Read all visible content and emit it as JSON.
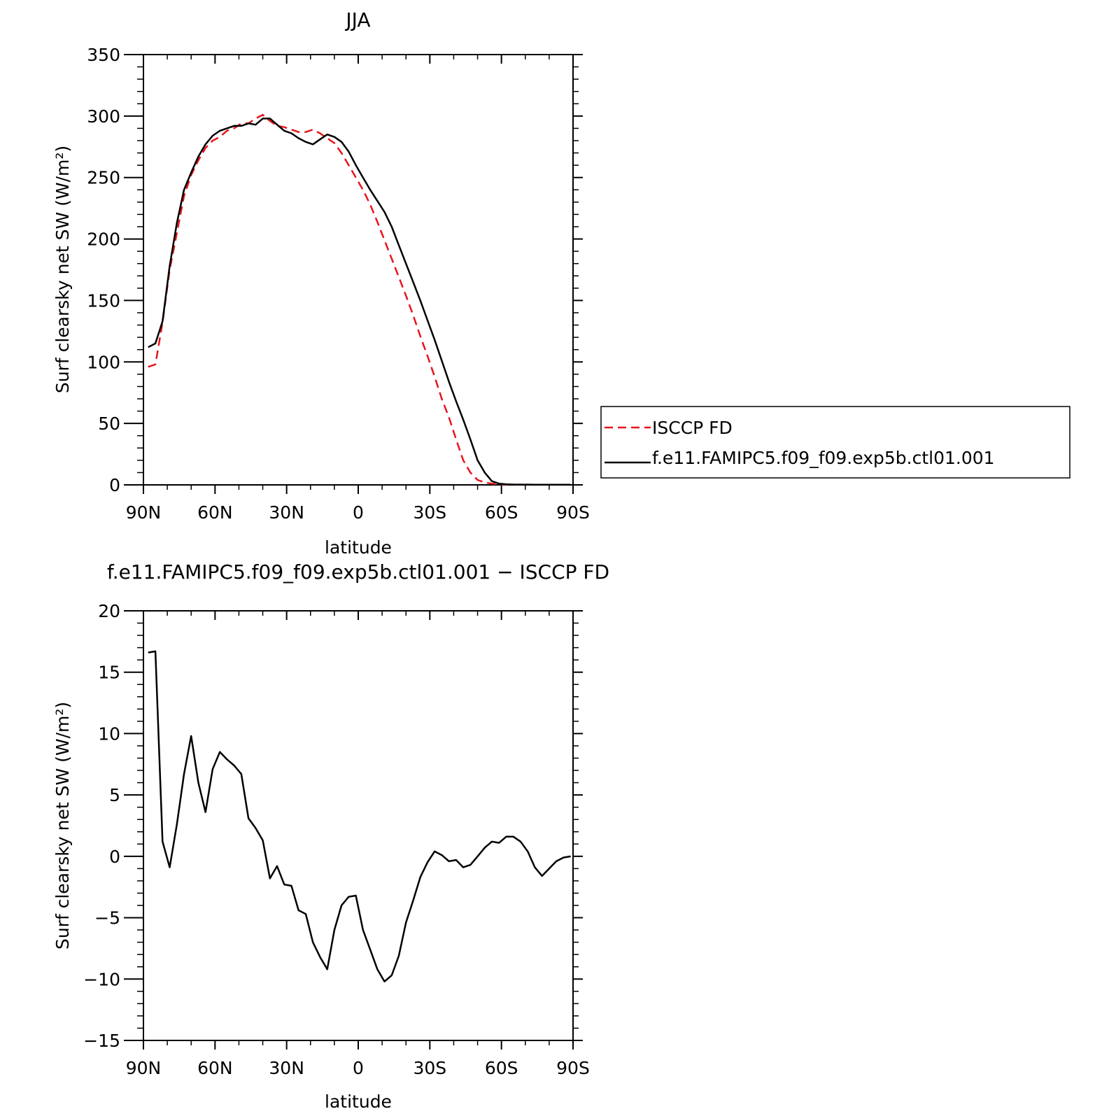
{
  "chart_data": [
    {
      "type": "line",
      "title": "JJA",
      "xlabel": "latitude",
      "ylabel": "Surf clearsky net SW (W/m²)",
      "xlim": [
        90,
        -90
      ],
      "ylim": [
        0,
        350
      ],
      "x_ticks": [
        90,
        60,
        30,
        0,
        -30,
        -60,
        -90
      ],
      "x_tick_labels": [
        "90N",
        "60N",
        "30N",
        "0",
        "30S",
        "60S",
        "90S"
      ],
      "y_ticks": [
        0,
        50,
        100,
        150,
        200,
        250,
        300,
        350
      ],
      "y_tick_labels": [
        "0",
        "50",
        "100",
        "150",
        "200",
        "250",
        "300",
        "350"
      ],
      "legend_position": "right",
      "series": [
        {
          "name": "ISCCP FD",
          "color": "#e8141c",
          "dash": "dashed",
          "x": [
            88,
            85,
            82,
            79,
            76,
            73,
            70,
            67,
            64,
            61,
            58,
            55,
            52,
            49,
            46,
            43,
            40,
            37,
            34,
            31,
            28,
            25,
            22,
            19,
            16,
            13,
            10,
            7,
            4,
            1,
            -2,
            -5,
            -8,
            -11,
            -14,
            -17,
            -20,
            -23,
            -26,
            -29,
            -32,
            -35,
            -38,
            -41,
            -44,
            -47,
            -50,
            -53,
            -56,
            -59,
            -62,
            -65,
            -68,
            -71,
            -74,
            -77,
            -80,
            -83,
            -86,
            -89
          ],
          "values": [
            96,
            98,
            132,
            175,
            205,
            235,
            252,
            264,
            274,
            280,
            283,
            288,
            290,
            294,
            294,
            298,
            301,
            296,
            292,
            291,
            289,
            287,
            287,
            289,
            286,
            282,
            278,
            270,
            260,
            250,
            240,
            228,
            214,
            199,
            184,
            169,
            154,
            138,
            121,
            105,
            88,
            70,
            55,
            37,
            20,
            10,
            4,
            2,
            1,
            0.5,
            0.3,
            0.2,
            0.2,
            0.2,
            0.1,
            0.1,
            0.1,
            0.1,
            0.1,
            0.1
          ]
        },
        {
          "name": "f.e11.FAMIPC5.f09_f09.exp5b.ctl01.001",
          "color": "#000000",
          "dash": "solid",
          "x": [
            88,
            85,
            82,
            79,
            76,
            73,
            70,
            67,
            64,
            61,
            58,
            55,
            52,
            49,
            46,
            43,
            40,
            37,
            34,
            31,
            28,
            25,
            22,
            19,
            16,
            13,
            10,
            7,
            4,
            1,
            -2,
            -5,
            -8,
            -11,
            -14,
            -17,
            -20,
            -23,
            -26,
            -29,
            -32,
            -35,
            -38,
            -41,
            -44,
            -47,
            -50,
            -53,
            -56,
            -59,
            -62,
            -65,
            -68,
            -71,
            -74,
            -77,
            -80,
            -83,
            -86,
            -89
          ],
          "values": [
            112,
            115,
            133,
            178,
            213,
            240,
            254,
            267,
            277,
            284,
            288,
            290,
            292,
            292,
            294,
            293,
            298,
            298,
            293,
            288,
            286,
            282,
            279,
            277,
            281,
            285,
            283,
            279,
            271,
            260,
            250,
            240,
            231,
            222,
            210,
            195,
            180,
            165,
            150,
            134,
            118,
            101,
            84,
            68,
            53,
            37,
            20,
            10,
            3,
            1,
            0.5,
            0.3,
            0.2,
            0.2,
            0.1,
            0.1,
            0.1,
            0.1,
            0.1,
            0.1
          ]
        }
      ]
    },
    {
      "type": "line",
      "title": "f.e11.FAMIPC5.f09_f09.exp5b.ctl01.001 − ISCCP FD",
      "xlabel": "latitude",
      "ylabel": "Surf clearsky net SW (W/m²)",
      "xlim": [
        90,
        -90
      ],
      "ylim": [
        -15,
        20
      ],
      "x_ticks": [
        90,
        60,
        30,
        0,
        -30,
        -60,
        -90
      ],
      "x_tick_labels": [
        "90N",
        "60N",
        "30N",
        "0",
        "30S",
        "60S",
        "90S"
      ],
      "y_ticks": [
        -15,
        -10,
        -5,
        0,
        5,
        10,
        15,
        20
      ],
      "y_tick_labels": [
        "−15",
        "−10",
        "−5",
        "0",
        "5",
        "10",
        "15",
        "20"
      ],
      "series": [
        {
          "color": "#000000",
          "dash": "solid",
          "x": [
            88,
            85,
            82,
            79,
            76,
            73,
            70,
            67,
            64,
            61,
            58,
            55,
            52,
            49,
            46,
            43,
            40,
            37,
            34,
            31,
            28,
            25,
            22,
            19,
            16,
            13,
            10,
            7,
            4,
            1,
            -2,
            -5,
            -8,
            -11,
            -14,
            -17,
            -20,
            -23,
            -26,
            -29,
            -32,
            -35,
            -38,
            -41,
            -44,
            -47,
            -50,
            -53,
            -56,
            -59,
            -62,
            -65,
            -68,
            -71,
            -74,
            -77,
            -80,
            -83,
            -86,
            -89
          ],
          "values": [
            16.6,
            16.7,
            1.2,
            -0.9,
            2.6,
            6.7,
            9.8,
            6.0,
            3.6,
            7.1,
            8.5,
            7.9,
            7.4,
            6.7,
            3.1,
            2.3,
            1.3,
            -1.8,
            -0.8,
            -2.3,
            -2.4,
            -4.4,
            -4.7,
            -7.0,
            -8.2,
            -9.2,
            -6.0,
            -4.0,
            -3.3,
            -3.2,
            -6.0,
            -7.6,
            -9.2,
            -10.2,
            -9.7,
            -8.1,
            -5.4,
            -3.6,
            -1.7,
            -0.5,
            0.4,
            0.1,
            -0.4,
            -0.3,
            -0.9,
            -0.7,
            0.0,
            0.7,
            1.2,
            1.1,
            1.6,
            1.6,
            1.2,
            0.4,
            -0.9,
            -1.6,
            -1.0,
            -0.4,
            -0.1,
            0.0
          ]
        }
      ]
    }
  ]
}
